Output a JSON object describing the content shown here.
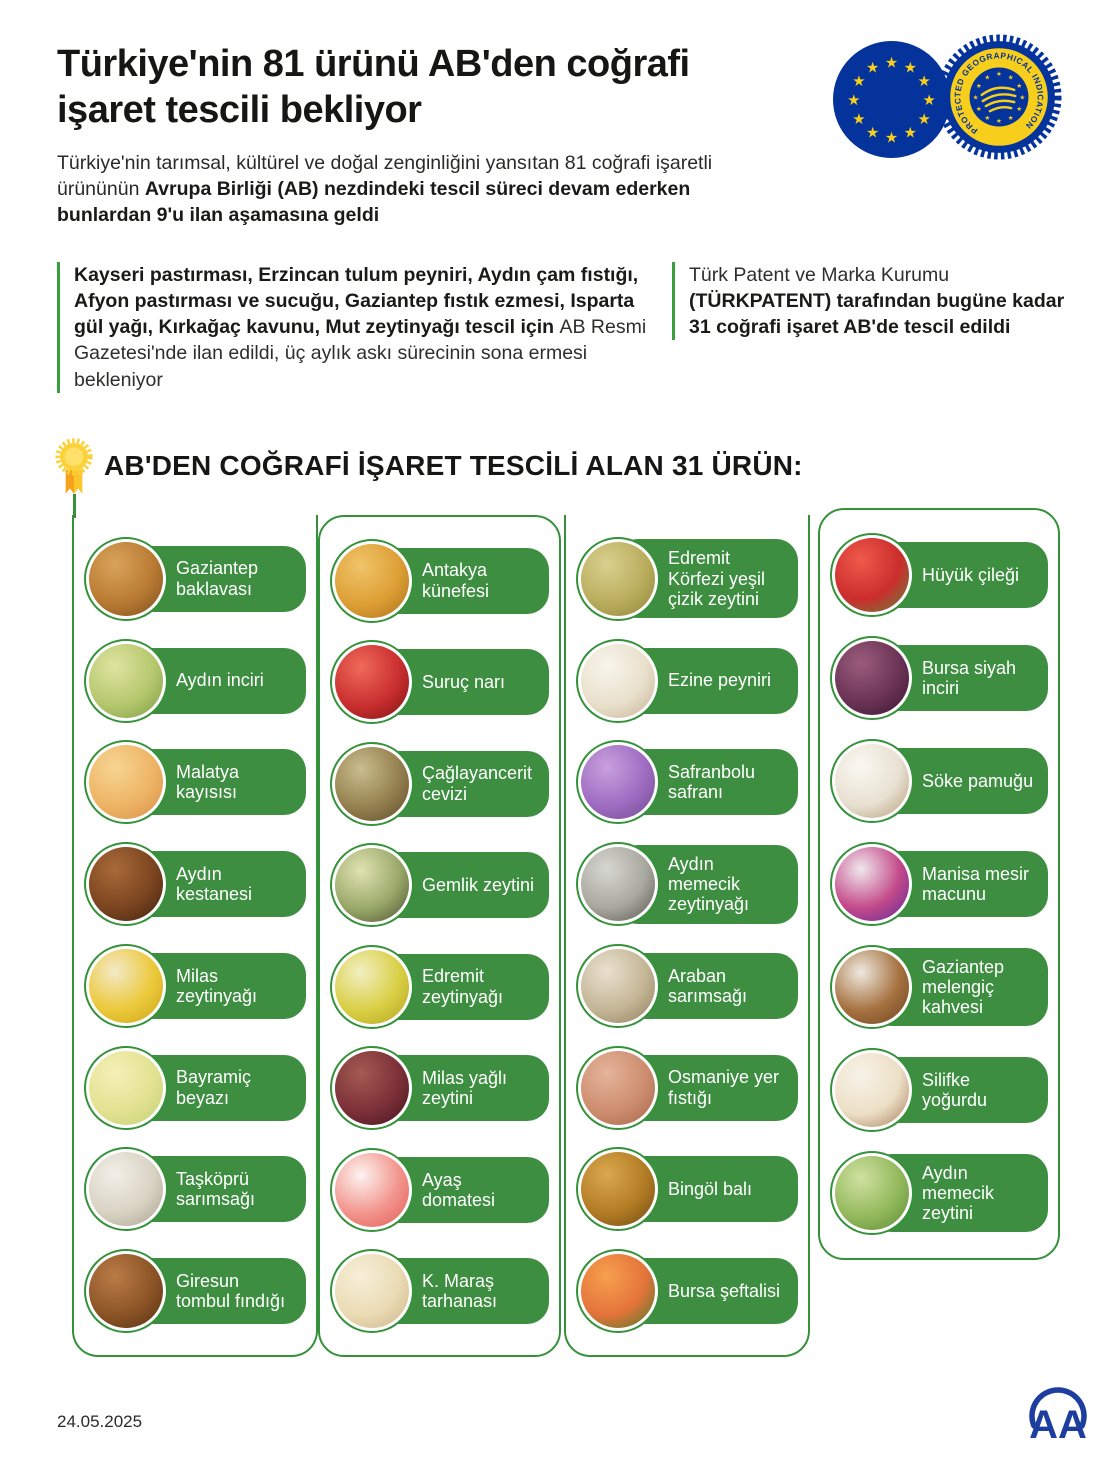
{
  "header": {
    "title": "Türkiye'nin 81 ürünü AB'den coğrafi işaret tescili bekliyor",
    "intro_regular": "Türkiye'nin tarımsal, kültürel ve doğal zenginliğini yansıtan 81 coğrafi işaretli ürününün ",
    "intro_bold": "Avrupa Birliği (AB) nezdindeki tescil süreci devam ederken bunlardan 9'u ilan aşamasına geldi"
  },
  "badges": {
    "pgi_ring_text": "PROTECTED GEOGRAPHICAL INDICATION"
  },
  "callouts": {
    "left_bold": "Kayseri pastırması, Erzincan tulum peyniri, Aydın çam fıstığı, Afyon pastırması ve sucuğu, Gaziantep fıstık ezmesi, Isparta gül yağı, Kırkağaç kavunu, Mut zeytinyağı tescil için ",
    "left_regular": "AB Resmi Gazetesi'nde ilan edildi, üç aylık askı sürecinin sona ermesi bekleniyor",
    "right_regular": "Türk Patent ve Marka Kurumu ",
    "right_bold": "(TÜRKPATENT) tarafından bugüne kadar 31 coğrafi işaret AB'de tescil edildi"
  },
  "section": {
    "heading": "AB'DEN COĞRAFİ İŞARET TESCİLİ ALAN 31 ÜRÜN:"
  },
  "columns": [
    {
      "boxed": false,
      "items": [
        {
          "label": "Gaziantep baklavası",
          "colors": [
            "#d9a35b",
            "#b97b33",
            "#7a4d1c"
          ]
        },
        {
          "label": "Aydın inciri",
          "colors": [
            "#dfe3a0",
            "#b5c86e",
            "#7d9a44"
          ]
        },
        {
          "label": "Malatya kayısısı",
          "colors": [
            "#f6d592",
            "#eeb465",
            "#d98f46"
          ]
        },
        {
          "label": "Aydın kestanesi",
          "colors": [
            "#a96a38",
            "#7b4520",
            "#40220e"
          ]
        },
        {
          "label": "Milas zeytinyağı",
          "colors": [
            "#f3e9c8",
            "#ecc93a",
            "#c9a417"
          ]
        },
        {
          "label": "Bayramiç beyazı",
          "colors": [
            "#f4f0b8",
            "#e3e291",
            "#bfcf72"
          ]
        },
        {
          "label": "Taşköprü sarımsağı",
          "colors": [
            "#f2efe7",
            "#d9d3c4",
            "#a8a091"
          ]
        },
        {
          "label": "Giresun tombul fındığı",
          "colors": [
            "#b97c46",
            "#8c5426",
            "#53300f"
          ]
        }
      ]
    },
    {
      "boxed": true,
      "items": [
        {
          "label": "Antakya künefesi",
          "colors": [
            "#f0c469",
            "#dd9f35",
            "#a96f1b"
          ]
        },
        {
          "label": "Suruç narı",
          "colors": [
            "#ef6a5a",
            "#c92f2f",
            "#7c1212"
          ]
        },
        {
          "label": "Çağlayancerit cevizi",
          "colors": [
            "#c9bd8d",
            "#94804f",
            "#5d4a28"
          ]
        },
        {
          "label": "Gemlik zeytini",
          "colors": [
            "#dfe3b0",
            "#9aa86a",
            "#46502c"
          ]
        },
        {
          "label": "Edremit zeytinyağı",
          "colors": [
            "#f2efc2",
            "#d9cf45",
            "#b0a31c"
          ]
        },
        {
          "label": "Milas yağlı zeytini",
          "colors": [
            "#a35b52",
            "#7c3038",
            "#43141c"
          ]
        },
        {
          "label": "Ayaş domatesi",
          "colors": [
            "#fdf3f0",
            "#f2948c",
            "#e05c55"
          ]
        },
        {
          "label": "K. Maraş tarhanası",
          "colors": [
            "#f7efd9",
            "#eadbb4",
            "#cbb488"
          ]
        }
      ]
    },
    {
      "boxed": false,
      "items": [
        {
          "label": "Edremit Körfezi yeşil çizik zeytini",
          "colors": [
            "#d9d08e",
            "#b9ad5d",
            "#8e8438"
          ]
        },
        {
          "label": "Ezine peyniri",
          "colors": [
            "#f8f5ec",
            "#e9e0cc",
            "#c3b190"
          ]
        },
        {
          "label": "Safranbolu safranı",
          "colors": [
            "#c8a0dd",
            "#9f6cc2",
            "#6d4a8a"
          ]
        },
        {
          "label": "Aydın memecik zeytinyağı",
          "colors": [
            "#d7d7d2",
            "#a8a89e",
            "#54544a"
          ]
        },
        {
          "label": "Araban sarımsağı",
          "colors": [
            "#e9e0cf",
            "#c4b696",
            "#8e7d5c"
          ]
        },
        {
          "label": "Osmaniye yer fıstığı",
          "colors": [
            "#e4b49a",
            "#cd8d6f",
            "#a5654a"
          ]
        },
        {
          "label": "Bingöl balı",
          "colors": [
            "#dba84f",
            "#b27c24",
            "#6d4a12"
          ]
        },
        {
          "label": "Bursa şeftalisi",
          "colors": [
            "#f6a04e",
            "#e4733a",
            "#3f7d2a"
          ]
        }
      ]
    },
    {
      "boxed": true,
      "items": [
        {
          "label": "Hüyük çileği",
          "colors": [
            "#ee5a4a",
            "#cc2d2d",
            "#5c8a3a"
          ]
        },
        {
          "label": "Bursa siyah inciri",
          "colors": [
            "#9a5c7c",
            "#6b3355",
            "#3a1630"
          ]
        },
        {
          "label": "Söke pamuğu",
          "colors": [
            "#faf8f2",
            "#e8e1d2",
            "#b49a78"
          ]
        },
        {
          "label": "Manisa mesir macunu",
          "colors": [
            "#f0e8ec",
            "#c44a8a",
            "#5c2a9a"
          ]
        },
        {
          "label": "Gaziantep melengiç kahvesi",
          "colors": [
            "#efe9df",
            "#a5713f",
            "#6d4522"
          ]
        },
        {
          "label": "Silifke yoğurdu",
          "colors": [
            "#f8f3e8",
            "#ecdfc6",
            "#a57a55"
          ]
        },
        {
          "label": "Aydın memecik zeytini",
          "colors": [
            "#cfe0a0",
            "#93b95c",
            "#5b8a35"
          ]
        }
      ]
    }
  ],
  "footer": {
    "date": "24.05.2025",
    "agency_logo_text": "AA"
  },
  "colors": {
    "pill_green": "#3e8e41",
    "border_green": "#35923a",
    "eu_blue": "#04339b",
    "eu_yellow": "#f8ce1c",
    "medal_yellow": "#fcd23a",
    "aa_blue": "#1d3e9e",
    "text_dark": "#161614"
  }
}
